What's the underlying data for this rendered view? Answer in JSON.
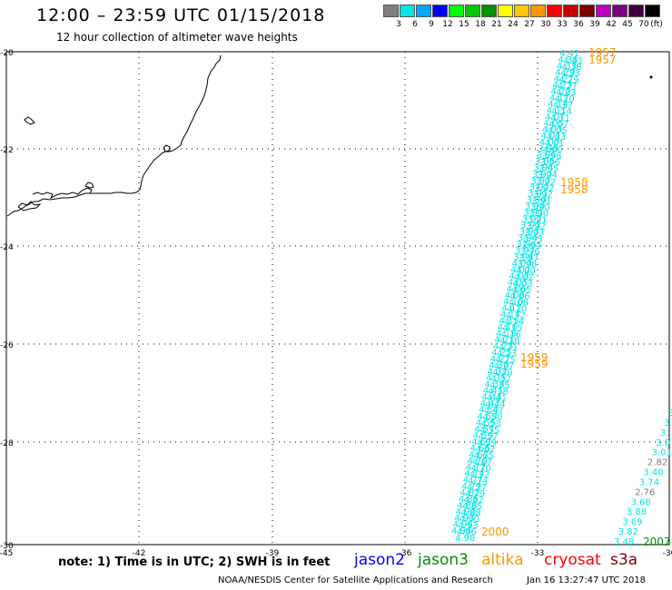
{
  "header": {
    "title": "12:00 – 23:59 UTC 01/15/2018",
    "subtitle": "12 hour collection of altimeter wave heights"
  },
  "scale": {
    "unit": "(ft)",
    "colors": [
      "#7f7f7f",
      "#00e5e5",
      "#00a8ff",
      "#0000ff",
      "#00ff00",
      "#00c800",
      "#009000",
      "#ffff00",
      "#ffc800",
      "#ff9600",
      "#ff0000",
      "#c80000",
      "#800000",
      "#c000c0",
      "#800080",
      "#400040",
      "#000000"
    ],
    "labels": [
      "3",
      "6",
      "9",
      "12",
      "15",
      "18",
      "21",
      "24",
      "27",
      "30",
      "33",
      "36",
      "39",
      "42",
      "45",
      "70"
    ]
  },
  "axes": {
    "x_ticks": [
      "-45",
      "-42",
      "-39",
      "-36",
      "-33",
      "-30"
    ],
    "y_ticks": [
      "-20",
      "-22",
      "-24",
      "-26",
      "-28",
      "-30"
    ]
  },
  "track_main": {
    "color": "#00e5e5",
    "values": [
      "4.41",
      "4.38",
      "4.33",
      "4.29",
      "4.27",
      "4.23",
      "4.20",
      "4.17",
      "4.14",
      "4.11",
      "4.07",
      "4.05",
      "4.03",
      "4.01",
      "4.00",
      "3.98",
      "3.96",
      "3.95",
      "3.94",
      "3.92",
      "3.92",
      "3.92",
      "3.91",
      "3.90",
      "3.90",
      "3.91",
      "3.92",
      "3.93",
      "3.93",
      "3.94",
      "3.96",
      "3.97",
      "3.98",
      "4.00",
      "4.02",
      "4.03",
      "4.05",
      "4.06",
      "4.08",
      "4.10",
      "4.12",
      "4.14",
      "4.15",
      "4.16",
      "4.18",
      "4.21",
      "4.23",
      "4.25",
      "4.27",
      "4.30",
      "4.32",
      "4.35",
      "4.38",
      "4.41",
      "4.44",
      "4.47",
      "4.50",
      "4.53",
      "4.55",
      "4.57",
      "4.59",
      "4.62",
      "4.65",
      "4.67",
      "4.70",
      "4.72",
      "4.74",
      "4.77",
      "4.79",
      "4.82",
      "4.85",
      "4.88",
      "4.90",
      "4.93",
      "4.96",
      "4.98"
    ]
  },
  "time_labels_main": [
    {
      "text": "1957",
      "color": "#ff9600"
    },
    {
      "text": "1958",
      "color": "#ff9600"
    },
    {
      "text": "1959",
      "color": "#ff9600"
    },
    {
      "text": "2000",
      "color": "#ff9600"
    }
  ],
  "track_right": {
    "values": [
      {
        "text": "3",
        "color": "#00e5e5"
      },
      {
        "text": "3",
        "color": "#00e5e5"
      },
      {
        "text": "3.",
        "color": "#00e5e5"
      },
      {
        "text": "3.0",
        "color": "#00e5e5"
      },
      {
        "text": "3.01",
        "color": "#00e5e5"
      },
      {
        "text": "2.82",
        "color": "#7f7f7f"
      },
      {
        "text": "3.40",
        "color": "#00e5e5"
      },
      {
        "text": "3.74",
        "color": "#00e5e5"
      },
      {
        "text": "2.76",
        "color": "#7f7f7f"
      },
      {
        "text": "3.68",
        "color": "#00e5e5"
      },
      {
        "text": "3.88",
        "color": "#00e5e5"
      },
      {
        "text": "3.69",
        "color": "#00e5e5"
      },
      {
        "text": "3.82",
        "color": "#00e5e5"
      },
      {
        "text": "3.48",
        "color": "#00e5e5"
      }
    ],
    "time_label": {
      "text": "2007",
      "color": "#009000"
    }
  },
  "legend": {
    "note": "note: 1) Time is in UTC; 2) SWH is in feet",
    "satellites": [
      {
        "name": "jason2",
        "color": "#0000ff"
      },
      {
        "name": "jason3",
        "color": "#009000"
      },
      {
        "name": "altika",
        "color": "#ff9600"
      },
      {
        "name": "cryosat",
        "color": "#ff0000"
      },
      {
        "name": "s3a",
        "color": "#800000"
      }
    ]
  },
  "footer": {
    "credit": "NOAA/NESDIS Center for Satellite Applications and Research",
    "timestamp": "Jan 16 13:27:47 UTC 2018"
  }
}
